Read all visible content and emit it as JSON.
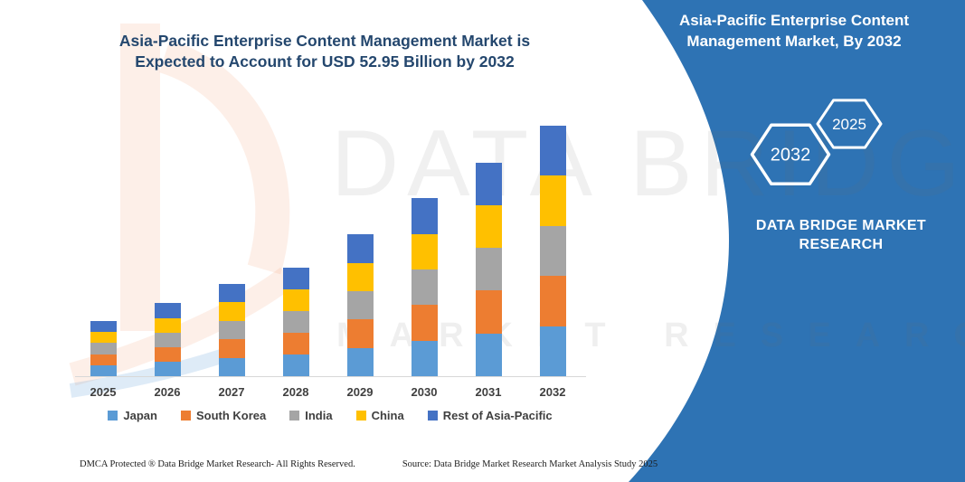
{
  "header": {
    "title_line1": "Asia-Pacific Enterprise Content Management Market is",
    "title_line2": "Expected to Account for USD 52.95 Billion by 2032"
  },
  "chart_data": {
    "type": "bar",
    "stacked": true,
    "title": "Asia-Pacific Enterprise Content Management Market is Expected to Account for USD 52.95 Billion by 2032",
    "unit": "USD Billion",
    "categories": [
      "2025",
      "2026",
      "2027",
      "2028",
      "2029",
      "2030",
      "2031",
      "2032"
    ],
    "series": [
      {
        "name": "Japan",
        "color": "#5B9BD5",
        "values": [
          2.34,
          3.08,
          3.9,
          4.6,
          6.0,
          7.52,
          9.04,
          10.59
        ]
      },
      {
        "name": "South Korea",
        "color": "#ED7D31",
        "values": [
          2.34,
          3.08,
          3.9,
          4.6,
          6.0,
          7.52,
          9.04,
          10.59
        ]
      },
      {
        "name": "India",
        "color": "#A5A5A5",
        "values": [
          2.34,
          3.08,
          3.9,
          4.6,
          6.0,
          7.52,
          9.04,
          10.59
        ]
      },
      {
        "name": "China",
        "color": "#FFC000",
        "values": [
          2.34,
          3.08,
          3.9,
          4.6,
          6.0,
          7.52,
          9.04,
          10.59
        ]
      },
      {
        "name": "Rest of Asia-Pacific",
        "color": "#4472C4",
        "values": [
          2.34,
          3.08,
          3.9,
          4.6,
          6.0,
          7.52,
          9.04,
          10.59
        ]
      }
    ],
    "totals": [
      11.7,
      15.4,
      19.5,
      23.0,
      30.0,
      37.6,
      45.2,
      52.95
    ],
    "headline_value": "USD 52.95 Billion by 2032",
    "ylim": [
      0,
      55
    ],
    "grid": false,
    "y_axis_visible": false,
    "legend_position": "bottom"
  },
  "watermark": {
    "line1": "DATA BRIDGE",
    "line2": "MARKET RESEARCH"
  },
  "side_panel": {
    "bg_color": "#2E73B4",
    "title_line1": "Asia-Pacific Enterprise Content",
    "title_line2": "Management Market, By 2032",
    "hex_back_label": "2032",
    "hex_front_label": "2025",
    "brand_line1": "DATA BRIDGE MARKET",
    "brand_line2": "RESEARCH"
  },
  "footer": {
    "left": "DMCA Protected ® Data Bridge Market Research-  All Rights Reserved.",
    "right": "Source: Data Bridge Market Research  Market Analysis Study 2025"
  }
}
